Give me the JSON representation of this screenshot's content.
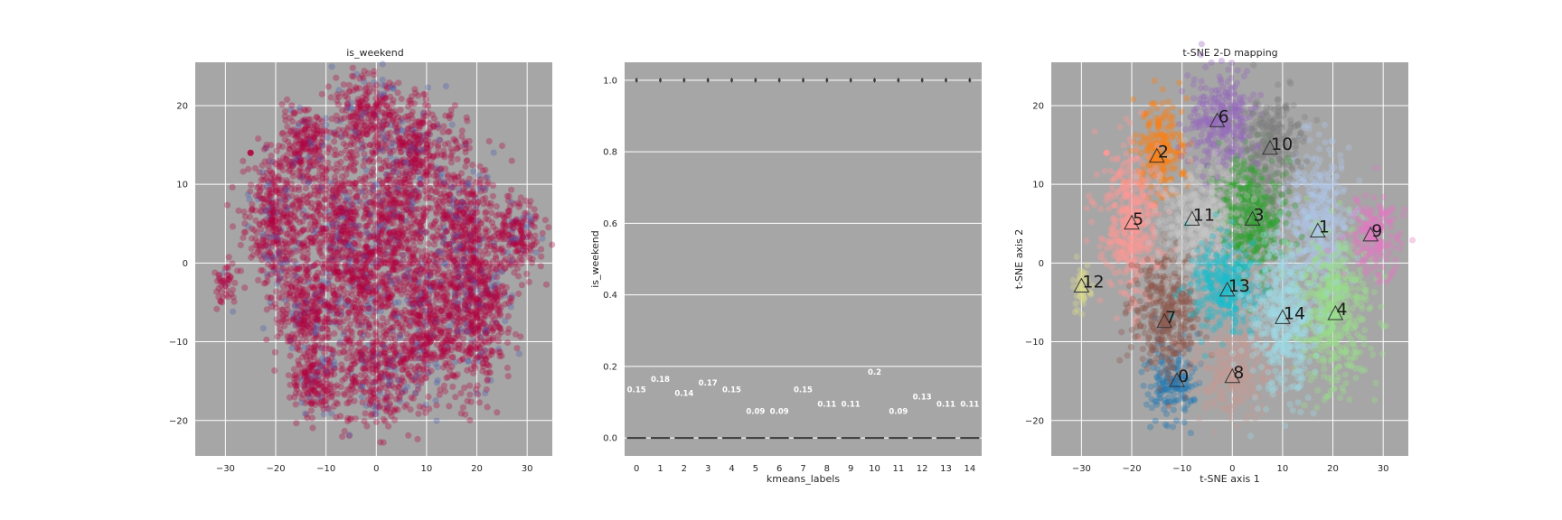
{
  "chart_data": [
    {
      "type": "scatter",
      "title": "is_weekend",
      "xlabel": "",
      "ylabel": "",
      "xlim": [
        -36,
        35
      ],
      "ylim": [
        -24.5,
        25.5
      ],
      "xticks": [
        -30,
        -20,
        -10,
        0,
        10,
        20,
        30
      ],
      "yticks": [
        -20,
        -10,
        0,
        10,
        20
      ],
      "xticklabels": [
        "−30",
        "−20",
        "−10",
        "0",
        "10",
        "20",
        "30"
      ],
      "yticklabels": [
        "−20",
        "−10",
        "0",
        "10",
        "20"
      ],
      "grid": true,
      "background": "#a6a6a6",
      "colors": {
        "dominant": "#b2003f",
        "minority": "#4a5db0"
      },
      "clusters": [
        {
          "x": -12,
          "y": -15,
          "sx": 2.5,
          "sy": 2.3
        },
        {
          "x": 17,
          "y": 5,
          "sx": 3.2,
          "sy": 5
        },
        {
          "x": -14,
          "y": 14.5,
          "sx": 2.5,
          "sy": 3
        },
        {
          "x": 4,
          "y": 6,
          "sx": 3.5,
          "sy": 4
        },
        {
          "x": 20,
          "y": -6,
          "sx": 3.5,
          "sy": 5
        },
        {
          "x": -20,
          "y": 5,
          "sx": 3,
          "sy": 5
        },
        {
          "x": -2,
          "y": 18,
          "sx": 3.5,
          "sy": 3
        },
        {
          "x": -13,
          "y": -6.5,
          "sx": 3.2,
          "sy": 4
        },
        {
          "x": 0,
          "y": -14,
          "sx": 4,
          "sy": 3
        },
        {
          "x": 28,
          "y": 3.5,
          "sx": 2.5,
          "sy": 2.5
        },
        {
          "x": 8,
          "y": 15,
          "sx": 3,
          "sy": 3
        },
        {
          "x": -7,
          "y": 5,
          "sx": 3.5,
          "sy": 4
        },
        {
          "x": -30,
          "y": -3,
          "sx": 1,
          "sy": 1.5
        },
        {
          "x": -2,
          "y": -3,
          "sx": 3.5,
          "sy": 3
        },
        {
          "x": 10,
          "y": -7,
          "sx": 3.5,
          "sy": 5
        }
      ]
    },
    {
      "type": "box",
      "title": "",
      "xlabel": "kmeans_labels",
      "ylabel": "is_weekend",
      "categories": [
        "0",
        "1",
        "2",
        "3",
        "4",
        "5",
        "6",
        "7",
        "8",
        "9",
        "10",
        "11",
        "12",
        "13",
        "14"
      ],
      "means": [
        0.15,
        0.18,
        0.14,
        0.17,
        0.15,
        0.09,
        0.09,
        0.15,
        0.11,
        0.11,
        0.2,
        0.09,
        0.13,
        0.11,
        0.11
      ],
      "mean_labels": [
        "0.15",
        "0.18",
        "0.14",
        "0.17",
        "0.15",
        "0.09",
        "0.09",
        "0.15",
        "0.11",
        "0.11",
        "0.2",
        "0.09",
        "0.13",
        "0.11",
        "0.11"
      ],
      "median": 0.0,
      "outlier": 1.0,
      "ylim": [
        -0.05,
        1.05
      ],
      "yticks": [
        0.0,
        0.2,
        0.4,
        0.6,
        0.8,
        1.0
      ],
      "yticklabels": [
        "0.0",
        "0.2",
        "0.4",
        "0.6",
        "0.8",
        "1.0"
      ],
      "grid": true,
      "background": "#a6a6a6"
    },
    {
      "type": "scatter",
      "title": "t-SNE 2-D mapping",
      "xlabel": "t-SNE axis 1",
      "ylabel": "t-SNE axis 2",
      "xlim": [
        -36,
        35
      ],
      "ylim": [
        -24.5,
        25.5
      ],
      "xticks": [
        -30,
        -20,
        -10,
        0,
        10,
        20,
        30
      ],
      "yticks": [
        -20,
        -10,
        0,
        10,
        20
      ],
      "xticklabels": [
        "−30",
        "−20",
        "−10",
        "0",
        "10",
        "20",
        "30"
      ],
      "yticklabels": [
        "−20",
        "−10",
        "0",
        "10",
        "20"
      ],
      "grid": true,
      "background": "#a6a6a6",
      "centroids": [
        {
          "label": "0",
          "x": -11,
          "y": -15,
          "color": "#1f77b4"
        },
        {
          "label": "1",
          "x": 17,
          "y": 4,
          "color": "#aec7e8"
        },
        {
          "label": "2",
          "x": -15,
          "y": 13.5,
          "color": "#ff7f0e"
        },
        {
          "label": "3",
          "x": 4,
          "y": 5.5,
          "color": "#2ca02c"
        },
        {
          "label": "4",
          "x": 20.5,
          "y": -6.5,
          "color": "#98df8a"
        },
        {
          "label": "5",
          "x": -20,
          "y": 5,
          "color": "#ff9896"
        },
        {
          "label": "6",
          "x": -3,
          "y": 18,
          "color": "#9467bd"
        },
        {
          "label": "7",
          "x": -13.5,
          "y": -7.5,
          "color": "#8c564b"
        },
        {
          "label": "8",
          "x": 0,
          "y": -14.5,
          "color": "#c49c94"
        },
        {
          "label": "9",
          "x": 27.5,
          "y": 3.5,
          "color": "#e377c2"
        },
        {
          "label": "10",
          "x": 7.5,
          "y": 14.5,
          "color": "#7f7f7f"
        },
        {
          "label": "11",
          "x": -8,
          "y": 5.5,
          "color": "#c7c7c7"
        },
        {
          "label": "12",
          "x": -30,
          "y": -3,
          "color": "#dbdb8d"
        },
        {
          "label": "13",
          "x": -1,
          "y": -3.5,
          "color": "#17becf"
        },
        {
          "label": "14",
          "x": 10,
          "y": -7,
          "color": "#9edae5"
        }
      ]
    }
  ]
}
